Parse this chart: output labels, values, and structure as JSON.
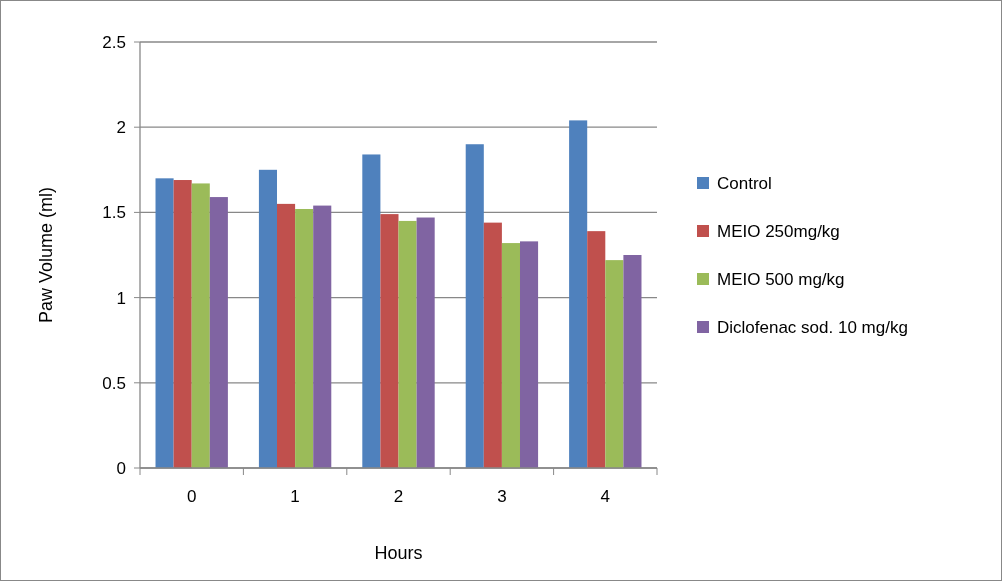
{
  "chart_data": {
    "type": "bar",
    "xlabel": "Hours",
    "ylabel": "Paw Volume (ml)",
    "categories": [
      "0",
      "1",
      "2",
      "3",
      "4"
    ],
    "series": [
      {
        "name": "Control",
        "color": "#4f81bd",
        "values": [
          1.7,
          1.75,
          1.84,
          1.9,
          2.04
        ]
      },
      {
        "name": "MEIO 250mg/kg",
        "color": "#c0504d",
        "values": [
          1.69,
          1.55,
          1.49,
          1.44,
          1.39
        ]
      },
      {
        "name": "MEIO 500 mg/kg",
        "color": "#9bbb59",
        "values": [
          1.67,
          1.52,
          1.45,
          1.32,
          1.22
        ]
      },
      {
        "name": "Diclofenac sod. 10 mg/kg",
        "color": "#8064a2",
        "values": [
          1.59,
          1.54,
          1.47,
          1.33,
          1.25
        ]
      }
    ],
    "ylim": [
      0,
      2.5
    ],
    "yticks": [
      0,
      0.5,
      1,
      1.5,
      2,
      2.5
    ],
    "grid": "y",
    "legend": "right"
  }
}
